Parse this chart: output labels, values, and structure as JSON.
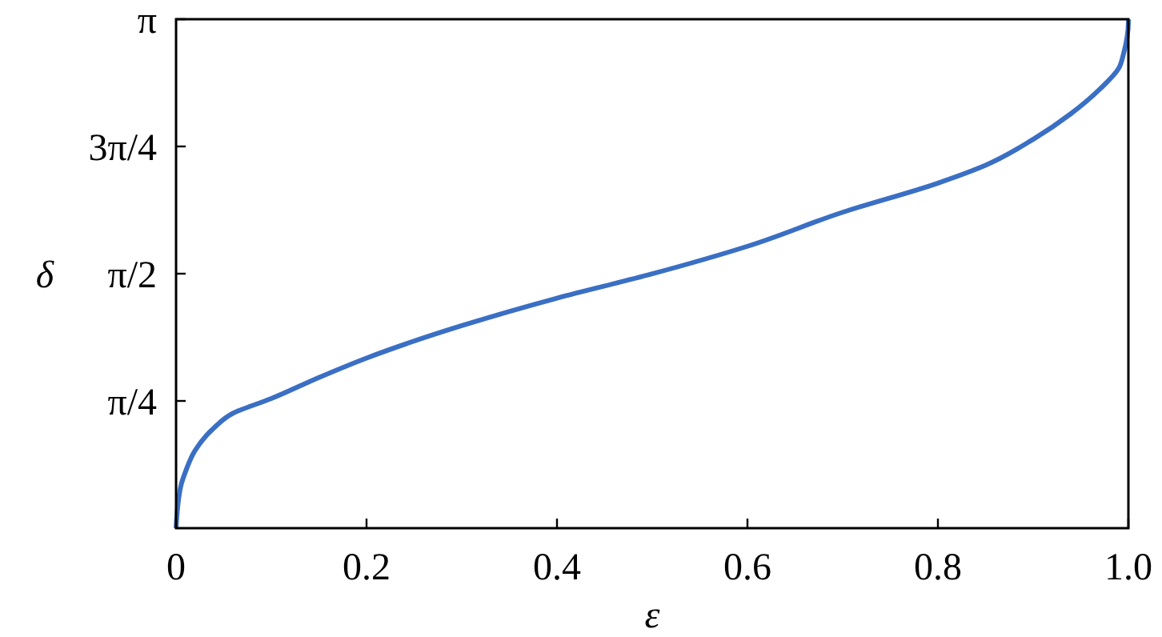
{
  "chart_data": {
    "type": "line",
    "xlabel": "ε",
    "ylabel": "δ",
    "x": [
      0,
      0.005,
      0.01,
      0.02,
      0.04,
      0.06,
      0.1,
      0.15,
      0.2,
      0.3,
      0.4,
      0.5,
      0.6,
      0.7,
      0.8,
      0.85,
      0.9,
      0.94,
      0.97,
      0.99,
      0.995,
      1,
      1
    ],
    "series": [
      {
        "color": "#3a6fc4",
        "values": [
          0,
          0.26,
          0.35,
          0.48,
          0.62,
          0.71,
          0.8,
          0.93,
          1.05,
          1.25,
          1.42,
          1.57,
          1.74,
          1.95,
          2.13,
          2.24,
          2.4,
          2.56,
          2.71,
          2.84,
          2.93,
          3.13,
          3.14
        ]
      }
    ],
    "xlim": [
      0,
      1
    ],
    "xticks": [
      0,
      0.2,
      0.4,
      0.6,
      0.8,
      {
        "value": 1,
        "label": "1.0"
      }
    ],
    "ylim": [
      0,
      3.1416
    ],
    "yticks": [
      {
        "value": 0.7854,
        "label": "π/4"
      },
      {
        "value": 1.5708,
        "label": "π/2"
      },
      {
        "value": 2.3562,
        "label": "3π/4"
      },
      {
        "value": 3.1416,
        "label": "π"
      }
    ],
    "grid": false,
    "marker": "none",
    "line_style": "solid"
  }
}
